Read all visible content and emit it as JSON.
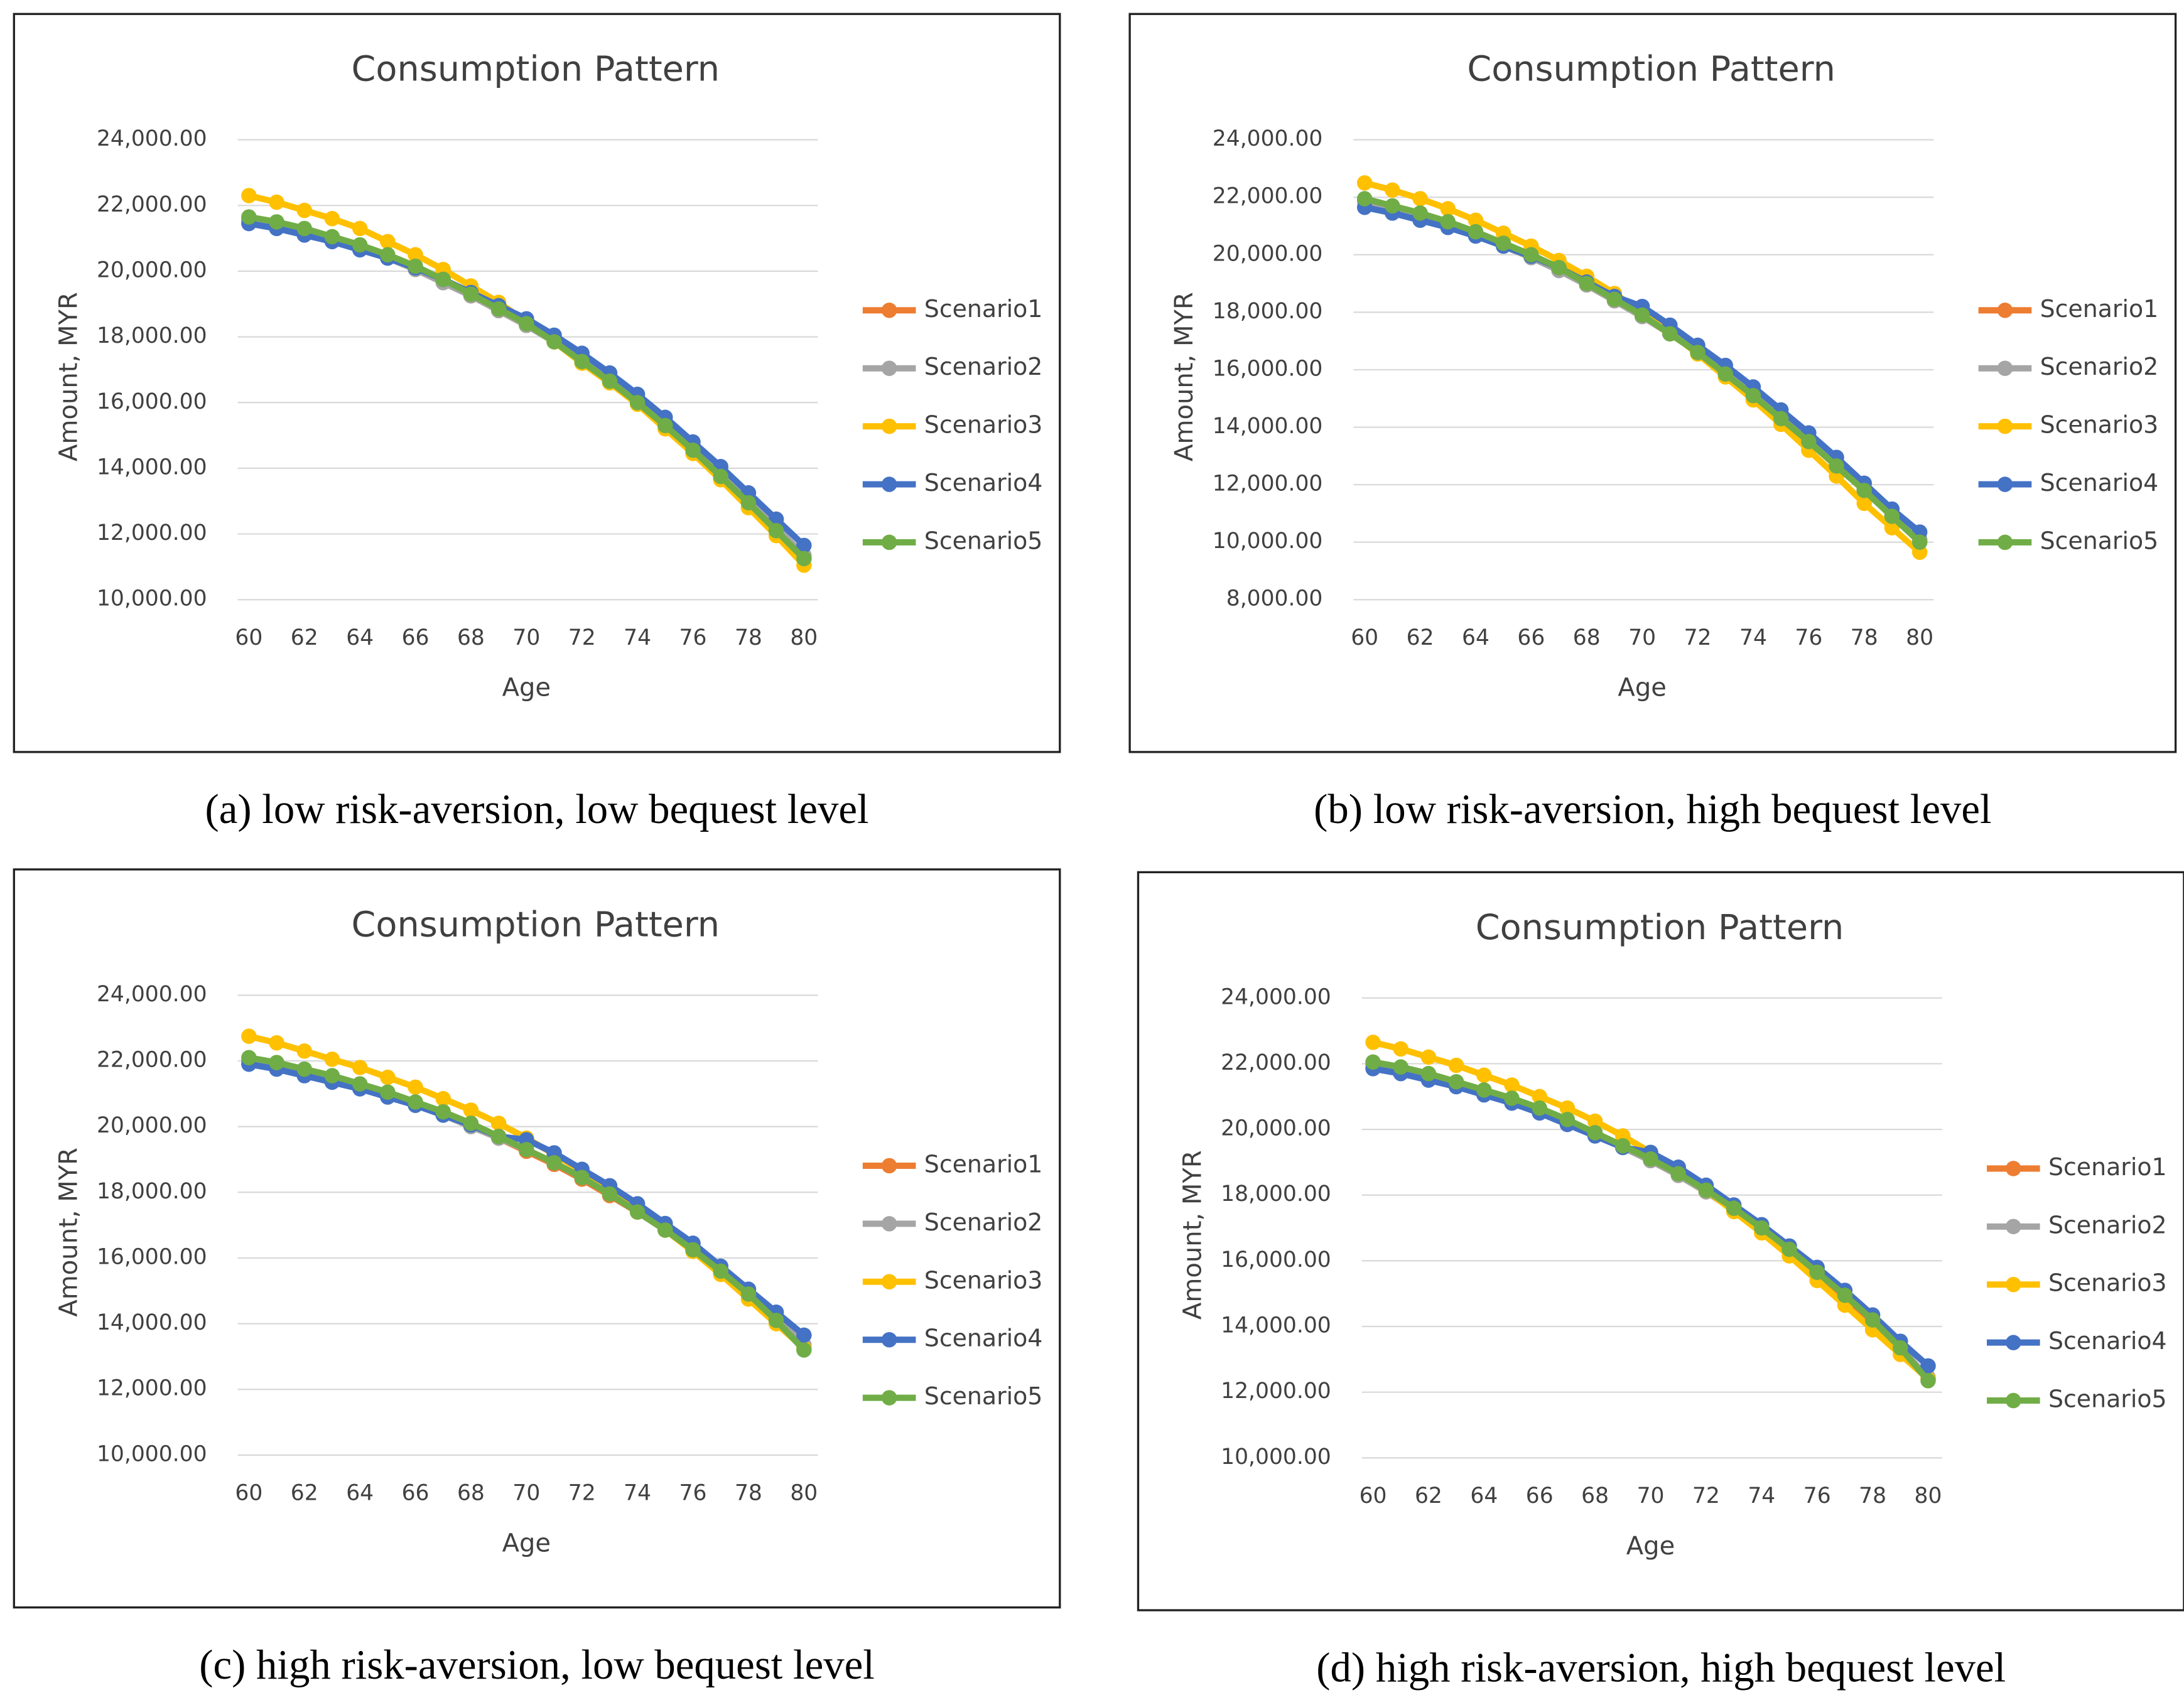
{
  "chart_data": [
    {
      "type": "line",
      "title": "Consumption Pattern",
      "caption": "(a) low risk-aversion, low bequest level",
      "xlabel": "Age",
      "ylabel": "Amount, MYR",
      "x": [
        60,
        61,
        62,
        63,
        64,
        65,
        66,
        67,
        68,
        69,
        70,
        71,
        72,
        73,
        74,
        75,
        76,
        77,
        78,
        79,
        80
      ],
      "xlim": [
        60,
        80
      ],
      "xticks": [
        60,
        62,
        64,
        66,
        68,
        70,
        72,
        74,
        76,
        78,
        80
      ],
      "ylim": [
        10000,
        24000
      ],
      "yticks": [
        {
          "value": 10000,
          "label": "10,000.00"
        },
        {
          "value": 12000,
          "label": "12,000.00"
        },
        {
          "value": 14000,
          "label": "14,000.00"
        },
        {
          "value": 16000,
          "label": "16,000.00"
        },
        {
          "value": 18000,
          "label": "18,000.00"
        },
        {
          "value": 20000,
          "label": "20,000.00"
        },
        {
          "value": 22000,
          "label": "22,000.00"
        },
        {
          "value": 24000,
          "label": "24,000.00"
        }
      ],
      "grid": true,
      "series": [
        {
          "name": "Scenario1",
          "color": "#ED7D31",
          "values": [
            21600,
            21450,
            21250,
            21000,
            20750,
            20450,
            20100,
            19700,
            19250,
            18800,
            18350,
            17850,
            17250,
            16650,
            16000,
            15300,
            14550,
            13800,
            13000,
            12150,
            11300
          ]
        },
        {
          "name": "Scenario2",
          "color": "#A5A5A5",
          "values": [
            21550,
            21400,
            21200,
            20950,
            20700,
            20400,
            20050,
            19650,
            19250,
            18800,
            18350,
            17850,
            17300,
            16700,
            16050,
            15350,
            14600,
            13850,
            13050,
            12200,
            11350
          ]
        },
        {
          "name": "Scenario3",
          "color": "#FFC000",
          "values": [
            22300,
            22100,
            21850,
            21600,
            21300,
            20900,
            20500,
            20050,
            19550,
            19050,
            18450,
            17850,
            17200,
            16600,
            15950,
            15200,
            14450,
            13650,
            12800,
            11950,
            11050
          ]
        },
        {
          "name": "Scenario4",
          "color": "#4472C4",
          "values": [
            21450,
            21300,
            21100,
            20900,
            20650,
            20400,
            20100,
            19750,
            19350,
            18950,
            18550,
            18050,
            17500,
            16900,
            16250,
            15550,
            14800,
            14050,
            13250,
            12450,
            11650
          ]
        },
        {
          "name": "Scenario5",
          "color": "#70AD47",
          "values": [
            21650,
            21500,
            21300,
            21050,
            20800,
            20500,
            20150,
            19750,
            19300,
            18850,
            18400,
            17850,
            17250,
            16650,
            16000,
            15300,
            14550,
            13750,
            12950,
            12100,
            11250
          ]
        }
      ]
    },
    {
      "type": "line",
      "title": "Consumption Pattern",
      "caption": "(b) low risk-aversion, high bequest level",
      "xlabel": "Age",
      "ylabel": "Amount, MYR",
      "x": [
        60,
        61,
        62,
        63,
        64,
        65,
        66,
        67,
        68,
        69,
        70,
        71,
        72,
        73,
        74,
        75,
        76,
        77,
        78,
        79,
        80
      ],
      "xlim": [
        60,
        80
      ],
      "xticks": [
        60,
        62,
        64,
        66,
        68,
        70,
        72,
        74,
        76,
        78,
        80
      ],
      "ylim": [
        8000,
        24000
      ],
      "yticks": [
        {
          "value": 8000,
          "label": "8,000.00"
        },
        {
          "value": 10000,
          "label": "10,000.00"
        },
        {
          "value": 12000,
          "label": "12,000.00"
        },
        {
          "value": 14000,
          "label": "14,000.00"
        },
        {
          "value": 16000,
          "label": "16,000.00"
        },
        {
          "value": 18000,
          "label": "18,000.00"
        },
        {
          "value": 20000,
          "label": "20,000.00"
        },
        {
          "value": 22000,
          "label": "22,000.00"
        },
        {
          "value": 24000,
          "label": "24,000.00"
        }
      ],
      "grid": true,
      "series": [
        {
          "name": "Scenario1",
          "color": "#ED7D31",
          "values": [
            21900,
            21650,
            21400,
            21100,
            20750,
            20350,
            19950,
            19500,
            18950,
            18400,
            17850,
            17250,
            16600,
            15850,
            15100,
            14300,
            13500,
            12650,
            11800,
            10900,
            10050
          ]
        },
        {
          "name": "Scenario2",
          "color": "#A5A5A5",
          "values": [
            21850,
            21600,
            21350,
            21050,
            20700,
            20300,
            19900,
            19450,
            18950,
            18400,
            17850,
            17250,
            16600,
            15900,
            15150,
            14350,
            13550,
            12700,
            11850,
            10950,
            10100
          ]
        },
        {
          "name": "Scenario3",
          "color": "#FFC000",
          "values": [
            22500,
            22250,
            21950,
            21600,
            21200,
            20750,
            20300,
            19800,
            19250,
            18650,
            18000,
            17300,
            16550,
            15750,
            14950,
            14100,
            13200,
            12300,
            11350,
            10500,
            9650
          ]
        },
        {
          "name": "Scenario4",
          "color": "#4472C4",
          "values": [
            21650,
            21450,
            21200,
            20950,
            20650,
            20300,
            19950,
            19550,
            19050,
            18550,
            18200,
            17550,
            16850,
            16150,
            15400,
            14600,
            13800,
            12950,
            12050,
            11150,
            10350
          ]
        },
        {
          "name": "Scenario5",
          "color": "#70AD47",
          "values": [
            21950,
            21700,
            21450,
            21150,
            20800,
            20400,
            20000,
            19550,
            19000,
            18450,
            17900,
            17250,
            16600,
            15850,
            15100,
            14300,
            13500,
            12650,
            11800,
            10900,
            10000
          ]
        }
      ]
    },
    {
      "type": "line",
      "title": "Consumption Pattern",
      "caption": "(c) high risk-aversion, low bequest level",
      "xlabel": "Age",
      "ylabel": "Amount, MYR",
      "x": [
        60,
        61,
        62,
        63,
        64,
        65,
        66,
        67,
        68,
        69,
        70,
        71,
        72,
        73,
        74,
        75,
        76,
        77,
        78,
        79,
        80
      ],
      "xlim": [
        60,
        80
      ],
      "xticks": [
        60,
        62,
        64,
        66,
        68,
        70,
        72,
        74,
        76,
        78,
        80
      ],
      "ylim": [
        10000,
        24000
      ],
      "yticks": [
        {
          "value": 10000,
          "label": "10,000.00"
        },
        {
          "value": 12000,
          "label": "12,000.00"
        },
        {
          "value": 14000,
          "label": "14,000.00"
        },
        {
          "value": 16000,
          "label": "16,000.00"
        },
        {
          "value": 18000,
          "label": "18,000.00"
        },
        {
          "value": 20000,
          "label": "20,000.00"
        },
        {
          "value": 22000,
          "label": "22,000.00"
        },
        {
          "value": 24000,
          "label": "24,000.00"
        }
      ],
      "grid": true,
      "series": [
        {
          "name": "Scenario1",
          "color": "#ED7D31",
          "values": [
            22050,
            21900,
            21700,
            21500,
            21250,
            21000,
            20700,
            20400,
            20050,
            19650,
            19250,
            18850,
            18400,
            17900,
            17400,
            16850,
            16250,
            15600,
            14900,
            14150,
            13300
          ]
        },
        {
          "name": "Scenario2",
          "color": "#A5A5A5",
          "values": [
            22000,
            21850,
            21650,
            21450,
            21200,
            20950,
            20650,
            20350,
            20000,
            19650,
            19300,
            18900,
            18450,
            17950,
            17450,
            16900,
            16300,
            15650,
            14950,
            14200,
            13350
          ]
        },
        {
          "name": "Scenario3",
          "color": "#FFC000",
          "values": [
            22750,
            22550,
            22300,
            22050,
            21800,
            21500,
            21200,
            20850,
            20500,
            20100,
            19650,
            19150,
            18650,
            18100,
            17500,
            16850,
            16200,
            15500,
            14750,
            14000,
            13250
          ]
        },
        {
          "name": "Scenario4",
          "color": "#4472C4",
          "values": [
            21900,
            21750,
            21550,
            21350,
            21150,
            20900,
            20650,
            20350,
            20050,
            19700,
            19600,
            19200,
            18700,
            18200,
            17650,
            17050,
            16450,
            15750,
            15050,
            14350,
            13650
          ]
        },
        {
          "name": "Scenario5",
          "color": "#70AD47",
          "values": [
            22100,
            21950,
            21750,
            21550,
            21300,
            21050,
            20750,
            20450,
            20100,
            19700,
            19300,
            18900,
            18450,
            17950,
            17400,
            16850,
            16250,
            15600,
            14900,
            14100,
            13200
          ]
        }
      ]
    },
    {
      "type": "line",
      "title": "Consumption Pattern",
      "caption": "(d) high risk-aversion, high bequest level",
      "xlabel": "Age",
      "ylabel": "Amount, MYR",
      "x": [
        60,
        61,
        62,
        63,
        64,
        65,
        66,
        67,
        68,
        69,
        70,
        71,
        72,
        73,
        74,
        75,
        76,
        77,
        78,
        79,
        80
      ],
      "xlim": [
        60,
        80
      ],
      "xticks": [
        60,
        62,
        64,
        66,
        68,
        70,
        72,
        74,
        76,
        78,
        80
      ],
      "ylim": [
        10000,
        24000
      ],
      "yticks": [
        {
          "value": 10000,
          "label": "10,000.00"
        },
        {
          "value": 12000,
          "label": "12,000.00"
        },
        {
          "value": 14000,
          "label": "14,000.00"
        },
        {
          "value": 16000,
          "label": "16,000.00"
        },
        {
          "value": 18000,
          "label": "18,000.00"
        },
        {
          "value": 20000,
          "label": "20,000.00"
        },
        {
          "value": 22000,
          "label": "22,000.00"
        },
        {
          "value": 24000,
          "label": "24,000.00"
        }
      ],
      "grid": true,
      "series": [
        {
          "name": "Scenario1",
          "color": "#ED7D31",
          "values": [
            22000,
            21850,
            21650,
            21400,
            21150,
            20900,
            20600,
            20250,
            19850,
            19450,
            19050,
            18600,
            18100,
            17550,
            16950,
            16300,
            15600,
            14900,
            14150,
            13300,
            12400
          ]
        },
        {
          "name": "Scenario2",
          "color": "#A5A5A5",
          "values": [
            21950,
            21800,
            21600,
            21400,
            21150,
            20900,
            20600,
            20250,
            19850,
            19450,
            19050,
            18600,
            18100,
            17550,
            16950,
            16300,
            15650,
            14950,
            14200,
            13350,
            12450
          ]
        },
        {
          "name": "Scenario3",
          "color": "#FFC000",
          "values": [
            22650,
            22450,
            22200,
            21950,
            21650,
            21350,
            21000,
            20650,
            20250,
            19800,
            19300,
            18750,
            18150,
            17500,
            16850,
            16150,
            15400,
            14650,
            13900,
            13150,
            12400
          ]
        },
        {
          "name": "Scenario4",
          "color": "#4472C4",
          "values": [
            21850,
            21700,
            21500,
            21300,
            21050,
            20800,
            20500,
            20150,
            19800,
            19450,
            19300,
            18850,
            18300,
            17700,
            17100,
            16450,
            15800,
            15100,
            14350,
            13550,
            12800
          ]
        },
        {
          "name": "Scenario5",
          "color": "#70AD47",
          "values": [
            22050,
            21900,
            21700,
            21450,
            21200,
            20950,
            20650,
            20300,
            19900,
            19500,
            19100,
            18650,
            18150,
            17600,
            17000,
            16350,
            15650,
            14950,
            14200,
            13350,
            12350
          ]
        }
      ]
    }
  ]
}
